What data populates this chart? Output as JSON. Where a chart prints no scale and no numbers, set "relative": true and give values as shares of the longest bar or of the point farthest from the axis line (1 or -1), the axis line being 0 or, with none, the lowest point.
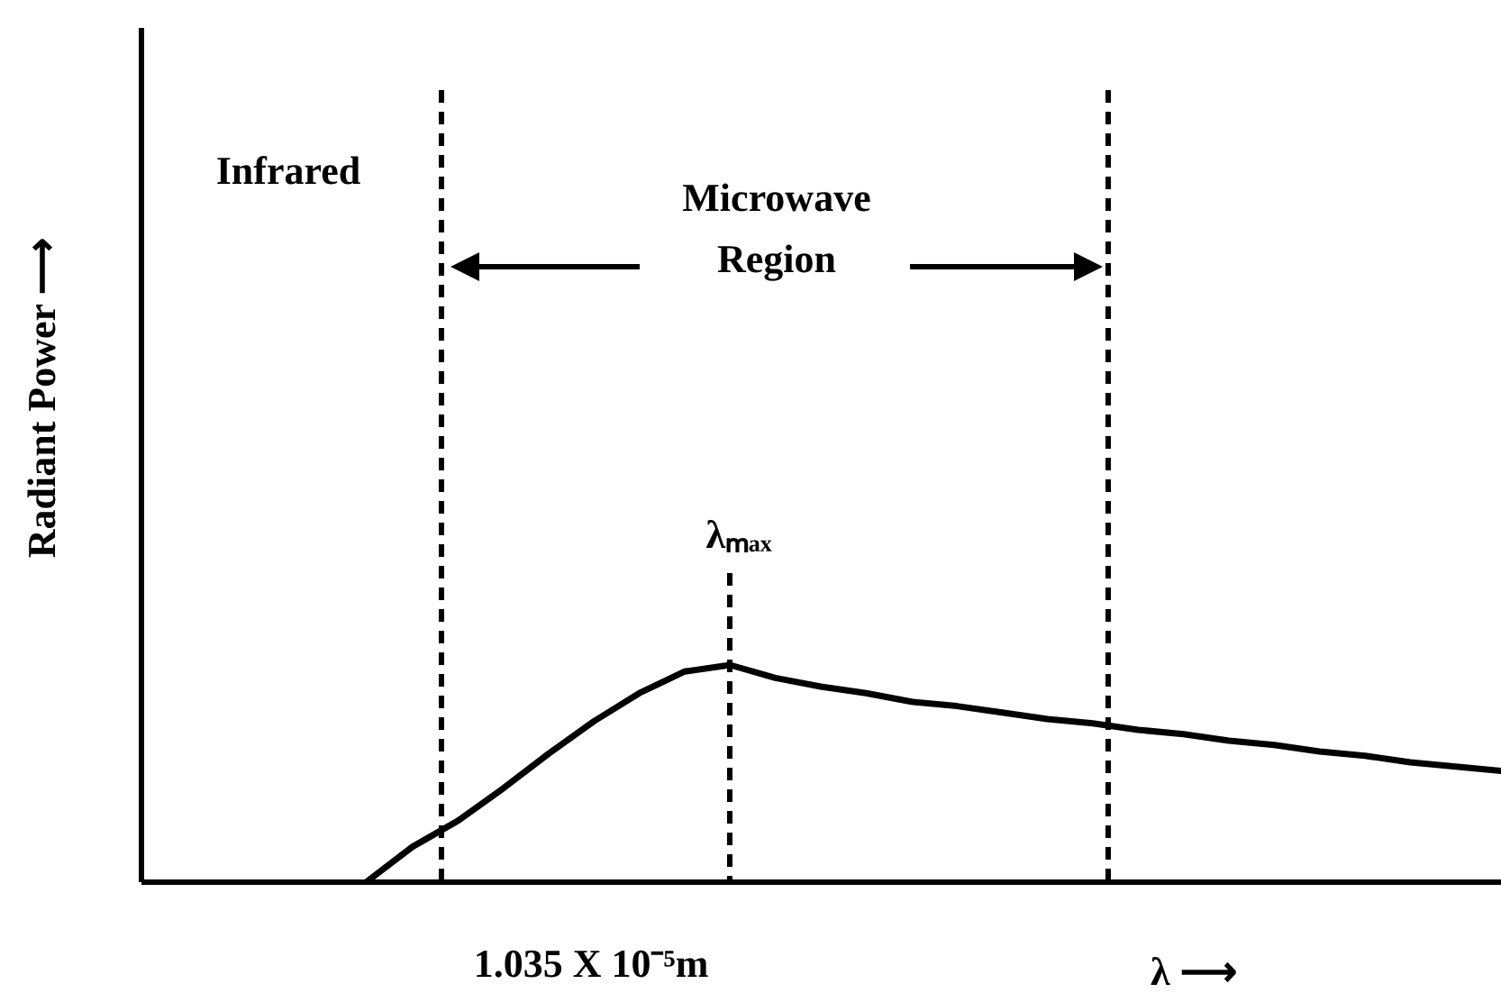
{
  "chart_data": {
    "type": "line",
    "relative": true,
    "color": "#000000",
    "line_style": "solid",
    "ylabel": "Radiant Power ⟶",
    "xlabel": "λ ⟶",
    "categories": [
      null,
      null,
      null,
      null,
      null,
      null,
      null,
      null,
      null,
      null,
      null,
      null,
      null,
      null,
      null,
      null,
      null,
      null,
      null,
      null,
      null,
      null,
      null,
      null,
      null,
      null,
      null,
      null,
      null,
      null,
      null
    ],
    "values": [
      null,
      null,
      null,
      null,
      null,
      0,
      0.16,
      0.28,
      0.43,
      0.59,
      0.74,
      0.87,
      0.97,
      1,
      0.94,
      0.9,
      0.87,
      0.83,
      0.81,
      0.78,
      0.75,
      0.73,
      0.7,
      0.68,
      0.65,
      0.63,
      0.6,
      0.58,
      0.55,
      0.53,
      0.51
    ],
    "annotations": [
      "Infrared",
      "Microwave Region",
      "λₘₐₓ",
      "1.035 X 10⁻⁵m"
    ]
  }
}
